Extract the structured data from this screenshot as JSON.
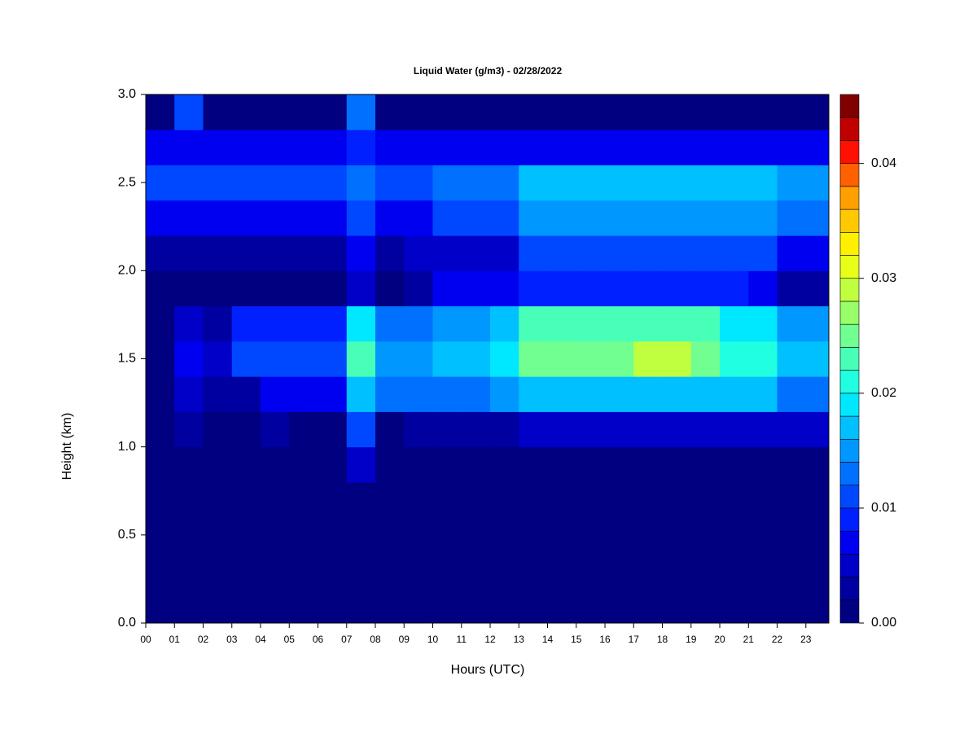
{
  "chart_data": {
    "type": "heatmap",
    "title": "Liquid Water (g/m3) - 02/28/2022",
    "xlabel": "Hours (UTC)",
    "ylabel": "Height (km)",
    "xlim": [
      0,
      23.8
    ],
    "ylim": [
      0,
      3
    ],
    "xticks": [
      {
        "value": 0,
        "label": "00"
      },
      {
        "value": 1,
        "label": "01"
      },
      {
        "value": 2,
        "label": "02"
      },
      {
        "value": 3,
        "label": "03"
      },
      {
        "value": 4,
        "label": "04"
      },
      {
        "value": 5,
        "label": "05"
      },
      {
        "value": 6,
        "label": "06"
      },
      {
        "value": 7,
        "label": "07"
      },
      {
        "value": 8,
        "label": "08"
      },
      {
        "value": 9,
        "label": "09"
      },
      10,
      11,
      12,
      13,
      14,
      15,
      16,
      17,
      18,
      19,
      20,
      21,
      22,
      23
    ],
    "yticks": [
      {
        "value": 0,
        "label": "0.0"
      },
      0.5,
      {
        "value": 1,
        "label": "1.0"
      },
      1.5,
      {
        "value": 2,
        "label": "2.0"
      },
      2.5,
      {
        "value": 3,
        "label": "3.0"
      }
    ],
    "x": [
      0.5,
      1.5,
      2.5,
      3.5,
      4.5,
      5.5,
      6.5,
      7.5,
      8.5,
      9.5,
      10.5,
      11.5,
      12.5,
      13.5,
      14.5,
      15.5,
      16.5,
      17.5,
      18.5,
      19.5,
      20.5,
      21.5,
      22.5,
      23.5
    ],
    "y": [
      0.1,
      0.3,
      0.5,
      0.7,
      0.9,
      1.1,
      1.3,
      1.5,
      1.7,
      1.9,
      2.1,
      2.3,
      2.5,
      2.7,
      2.9
    ],
    "z": [
      [
        0,
        0,
        0,
        0,
        0,
        0,
        0,
        0,
        0,
        0,
        0,
        0,
        0,
        0,
        0,
        0,
        0,
        0,
        0,
        0,
        0,
        0,
        0,
        0
      ],
      [
        0,
        0,
        0,
        0,
        0,
        0,
        0,
        0,
        0,
        0,
        0,
        0,
        0,
        0,
        0,
        0,
        0,
        0,
        0,
        0,
        0,
        0,
        0,
        0
      ],
      [
        0,
        0,
        0,
        0,
        0,
        0,
        0,
        0,
        0,
        0,
        0,
        0,
        0,
        0,
        0,
        0,
        0,
        0,
        0,
        0,
        0,
        0,
        0,
        0
      ],
      [
        0,
        0,
        0,
        0,
        0,
        0,
        0,
        0,
        0,
        0,
        0,
        0,
        0,
        0,
        0,
        0,
        0,
        0,
        0,
        0,
        0,
        0,
        0,
        0
      ],
      [
        0,
        0,
        0,
        0,
        0,
        0,
        0,
        0.004,
        0,
        0,
        0,
        0,
        0,
        0,
        0,
        0,
        0,
        0,
        0,
        0,
        0,
        0,
        0,
        0
      ],
      [
        0,
        0.002,
        0,
        0,
        0.002,
        0,
        0,
        0.01,
        0,
        0.002,
        0.002,
        0.002,
        0.002,
        0.004,
        0.004,
        0.004,
        0.004,
        0.004,
        0.004,
        0.004,
        0.004,
        0.004,
        0.004,
        0.004
      ],
      [
        0,
        0.004,
        0.002,
        0.002,
        0.006,
        0.006,
        0.006,
        0.016,
        0.012,
        0.012,
        0.012,
        0.012,
        0.014,
        0.016,
        0.016,
        0.016,
        0.016,
        0.016,
        0.016,
        0.016,
        0.016,
        0.016,
        0.012,
        0.012
      ],
      [
        0,
        0.006,
        0.004,
        0.01,
        0.01,
        0.01,
        0.01,
        0.022,
        0.014,
        0.014,
        0.016,
        0.016,
        0.018,
        0.024,
        0.024,
        0.024,
        0.024,
        0.028,
        0.028,
        0.024,
        0.02,
        0.02,
        0.016,
        0.016
      ],
      [
        0,
        0.004,
        0.002,
        0.008,
        0.008,
        0.008,
        0.008,
        0.018,
        0.012,
        0.012,
        0.014,
        0.014,
        0.016,
        0.022,
        0.022,
        0.022,
        0.022,
        0.022,
        0.022,
        0.022,
        0.018,
        0.018,
        0.014,
        0.014
      ],
      [
        0,
        0,
        0,
        0,
        0,
        0,
        0,
        0.004,
        0,
        0.002,
        0.006,
        0.006,
        0.006,
        0.008,
        0.008,
        0.008,
        0.008,
        0.008,
        0.008,
        0.008,
        0.008,
        0.006,
        0.002,
        0.002
      ],
      [
        0.002,
        0.002,
        0.002,
        0.002,
        0.002,
        0.002,
        0.002,
        0.006,
        0.002,
        0.004,
        0.004,
        0.004,
        0.004,
        0.01,
        0.01,
        0.01,
        0.01,
        0.01,
        0.01,
        0.01,
        0.01,
        0.01,
        0.006,
        0.006
      ],
      [
        0.006,
        0.006,
        0.006,
        0.006,
        0.006,
        0.006,
        0.006,
        0.01,
        0.006,
        0.006,
        0.01,
        0.01,
        0.01,
        0.014,
        0.014,
        0.014,
        0.014,
        0.014,
        0.014,
        0.014,
        0.014,
        0.014,
        0.012,
        0.012
      ],
      [
        0.01,
        0.01,
        0.01,
        0.01,
        0.01,
        0.01,
        0.01,
        0.012,
        0.01,
        0.01,
        0.012,
        0.012,
        0.012,
        0.016,
        0.016,
        0.016,
        0.016,
        0.016,
        0.016,
        0.016,
        0.016,
        0.016,
        0.014,
        0.014
      ],
      [
        0.006,
        0.006,
        0.006,
        0.006,
        0.006,
        0.006,
        0.006,
        0.008,
        0.006,
        0.006,
        0.006,
        0.006,
        0.006,
        0.006,
        0.006,
        0.006,
        0.006,
        0.006,
        0.006,
        0.006,
        0.006,
        0.006,
        0.006,
        0.006
      ],
      [
        0,
        0.01,
        0,
        0,
        0,
        0,
        0,
        0.012,
        0,
        0,
        0,
        0,
        0,
        0,
        0,
        0,
        0,
        0,
        0,
        0,
        0,
        0,
        0,
        0
      ]
    ],
    "levels": [
      0,
      0.002,
      0.004,
      0.006,
      0.008,
      0.01,
      0.012,
      0.014,
      0.016,
      0.018,
      0.02,
      0.022,
      0.024,
      0.026,
      0.028,
      0.03,
      0.032,
      0.034,
      0.036,
      0.038,
      0.04,
      0.042,
      0.044,
      0.046
    ],
    "colors": [
      "#000080",
      "#0000a0",
      "#0000c8",
      "#0000f0",
      "#0020ff",
      "#0048ff",
      "#0070ff",
      "#0098ff",
      "#00c0ff",
      "#00e8ff",
      "#20ffe0",
      "#48ffb8",
      "#70ff90",
      "#98ff68",
      "#c0ff40",
      "#e8ff18",
      "#fff000",
      "#ffc800",
      "#ffa000",
      "#ff6000",
      "#ff1000",
      "#c00000",
      "#800000"
    ],
    "zticks": [
      {
        "value": 0,
        "label": "0.00"
      },
      0.01,
      0.02,
      0.03,
      0.04
    ]
  }
}
